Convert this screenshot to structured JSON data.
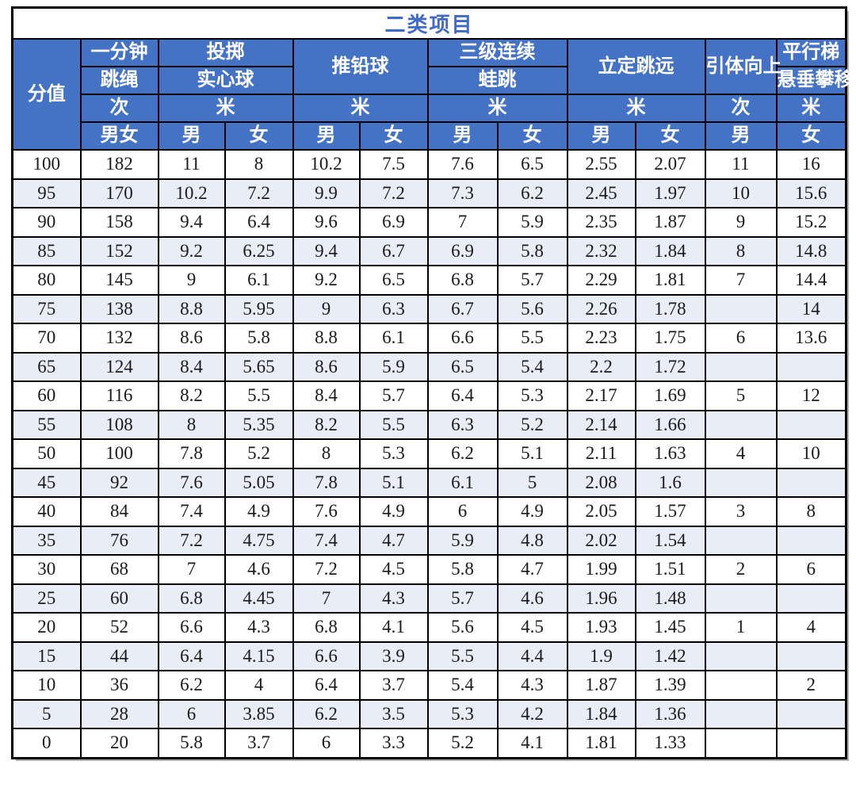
{
  "page": {
    "title": "二类项目"
  },
  "colors": {
    "header_bg": "#4472C4",
    "header_text": "#FFFFFF",
    "title_text": "#3F6BC6",
    "row_alt_bg": "#E9EDF8",
    "border": "#000000",
    "body_text": "#1A1A1A"
  },
  "table": {
    "score_header": "分值",
    "columns": [
      {
        "name_lines": [
          "一分钟",
          "跳绳"
        ],
        "unit": "次",
        "genders": [
          "男女"
        ]
      },
      {
        "name_lines": [
          "投掷",
          "实心球"
        ],
        "unit": "米",
        "genders": [
          "男",
          "女"
        ]
      },
      {
        "name_lines": [
          "推铅球"
        ],
        "unit": "米",
        "genders": [
          "男",
          "女"
        ]
      },
      {
        "name_lines": [
          "三级连续",
          "蛙跳"
        ],
        "unit": "米",
        "genders": [
          "男",
          "女"
        ]
      },
      {
        "name_lines": [
          "立定跳远"
        ],
        "unit": "米",
        "genders": [
          "男",
          "女"
        ]
      },
      {
        "name_lines": [
          "引体向上"
        ],
        "unit": "次",
        "genders": [
          "男"
        ]
      },
      {
        "name_lines": [
          "平行梯",
          "悬垂攀移"
        ],
        "unit": "米",
        "genders": [
          "女"
        ]
      }
    ],
    "rows": [
      [
        "100",
        "182",
        "11",
        "8",
        "10.2",
        "7.5",
        "7.6",
        "6.5",
        "2.55",
        "2.07",
        "11",
        "16"
      ],
      [
        "95",
        "170",
        "10.2",
        "7.2",
        "9.9",
        "7.2",
        "7.3",
        "6.2",
        "2.45",
        "1.97",
        "10",
        "15.6"
      ],
      [
        "90",
        "158",
        "9.4",
        "6.4",
        "9.6",
        "6.9",
        "7",
        "5.9",
        "2.35",
        "1.87",
        "9",
        "15.2"
      ],
      [
        "85",
        "152",
        "9.2",
        "6.25",
        "9.4",
        "6.7",
        "6.9",
        "5.8",
        "2.32",
        "1.84",
        "8",
        "14.8"
      ],
      [
        "80",
        "145",
        "9",
        "6.1",
        "9.2",
        "6.5",
        "6.8",
        "5.7",
        "2.29",
        "1.81",
        "7",
        "14.4"
      ],
      [
        "75",
        "138",
        "8.8",
        "5.95",
        "9",
        "6.3",
        "6.7",
        "5.6",
        "2.26",
        "1.78",
        "",
        "14"
      ],
      [
        "70",
        "132",
        "8.6",
        "5.8",
        "8.8",
        "6.1",
        "6.6",
        "5.5",
        "2.23",
        "1.75",
        "6",
        "13.6"
      ],
      [
        "65",
        "124",
        "8.4",
        "5.65",
        "8.6",
        "5.9",
        "6.5",
        "5.4",
        "2.2",
        "1.72",
        "",
        ""
      ],
      [
        "60",
        "116",
        "8.2",
        "5.5",
        "8.4",
        "5.7",
        "6.4",
        "5.3",
        "2.17",
        "1.69",
        "5",
        "12"
      ],
      [
        "55",
        "108",
        "8",
        "5.35",
        "8.2",
        "5.5",
        "6.3",
        "5.2",
        "2.14",
        "1.66",
        "",
        ""
      ],
      [
        "50",
        "100",
        "7.8",
        "5.2",
        "8",
        "5.3",
        "6.2",
        "5.1",
        "2.11",
        "1.63",
        "4",
        "10"
      ],
      [
        "45",
        "92",
        "7.6",
        "5.05",
        "7.8",
        "5.1",
        "6.1",
        "5",
        "2.08",
        "1.6",
        "",
        ""
      ],
      [
        "40",
        "84",
        "7.4",
        "4.9",
        "7.6",
        "4.9",
        "6",
        "4.9",
        "2.05",
        "1.57",
        "3",
        "8"
      ],
      [
        "35",
        "76",
        "7.2",
        "4.75",
        "7.4",
        "4.7",
        "5.9",
        "4.8",
        "2.02",
        "1.54",
        "",
        ""
      ],
      [
        "30",
        "68",
        "7",
        "4.6",
        "7.2",
        "4.5",
        "5.8",
        "4.7",
        "1.99",
        "1.51",
        "2",
        "6"
      ],
      [
        "25",
        "60",
        "6.8",
        "4.45",
        "7",
        "4.3",
        "5.7",
        "4.6",
        "1.96",
        "1.48",
        "",
        ""
      ],
      [
        "20",
        "52",
        "6.6",
        "4.3",
        "6.8",
        "4.1",
        "5.6",
        "4.5",
        "1.93",
        "1.45",
        "1",
        "4"
      ],
      [
        "15",
        "44",
        "6.4",
        "4.15",
        "6.6",
        "3.9",
        "5.5",
        "4.4",
        "1.9",
        "1.42",
        "",
        ""
      ],
      [
        "10",
        "36",
        "6.2",
        "4",
        "6.4",
        "3.7",
        "5.4",
        "4.3",
        "1.87",
        "1.39",
        "",
        "2"
      ],
      [
        "5",
        "28",
        "6",
        "3.85",
        "6.2",
        "3.5",
        "5.3",
        "4.2",
        "1.84",
        "1.36",
        "",
        ""
      ],
      [
        "0",
        "20",
        "5.8",
        "3.7",
        "6",
        "3.3",
        "5.2",
        "4.1",
        "1.81",
        "1.33",
        "",
        ""
      ]
    ]
  }
}
